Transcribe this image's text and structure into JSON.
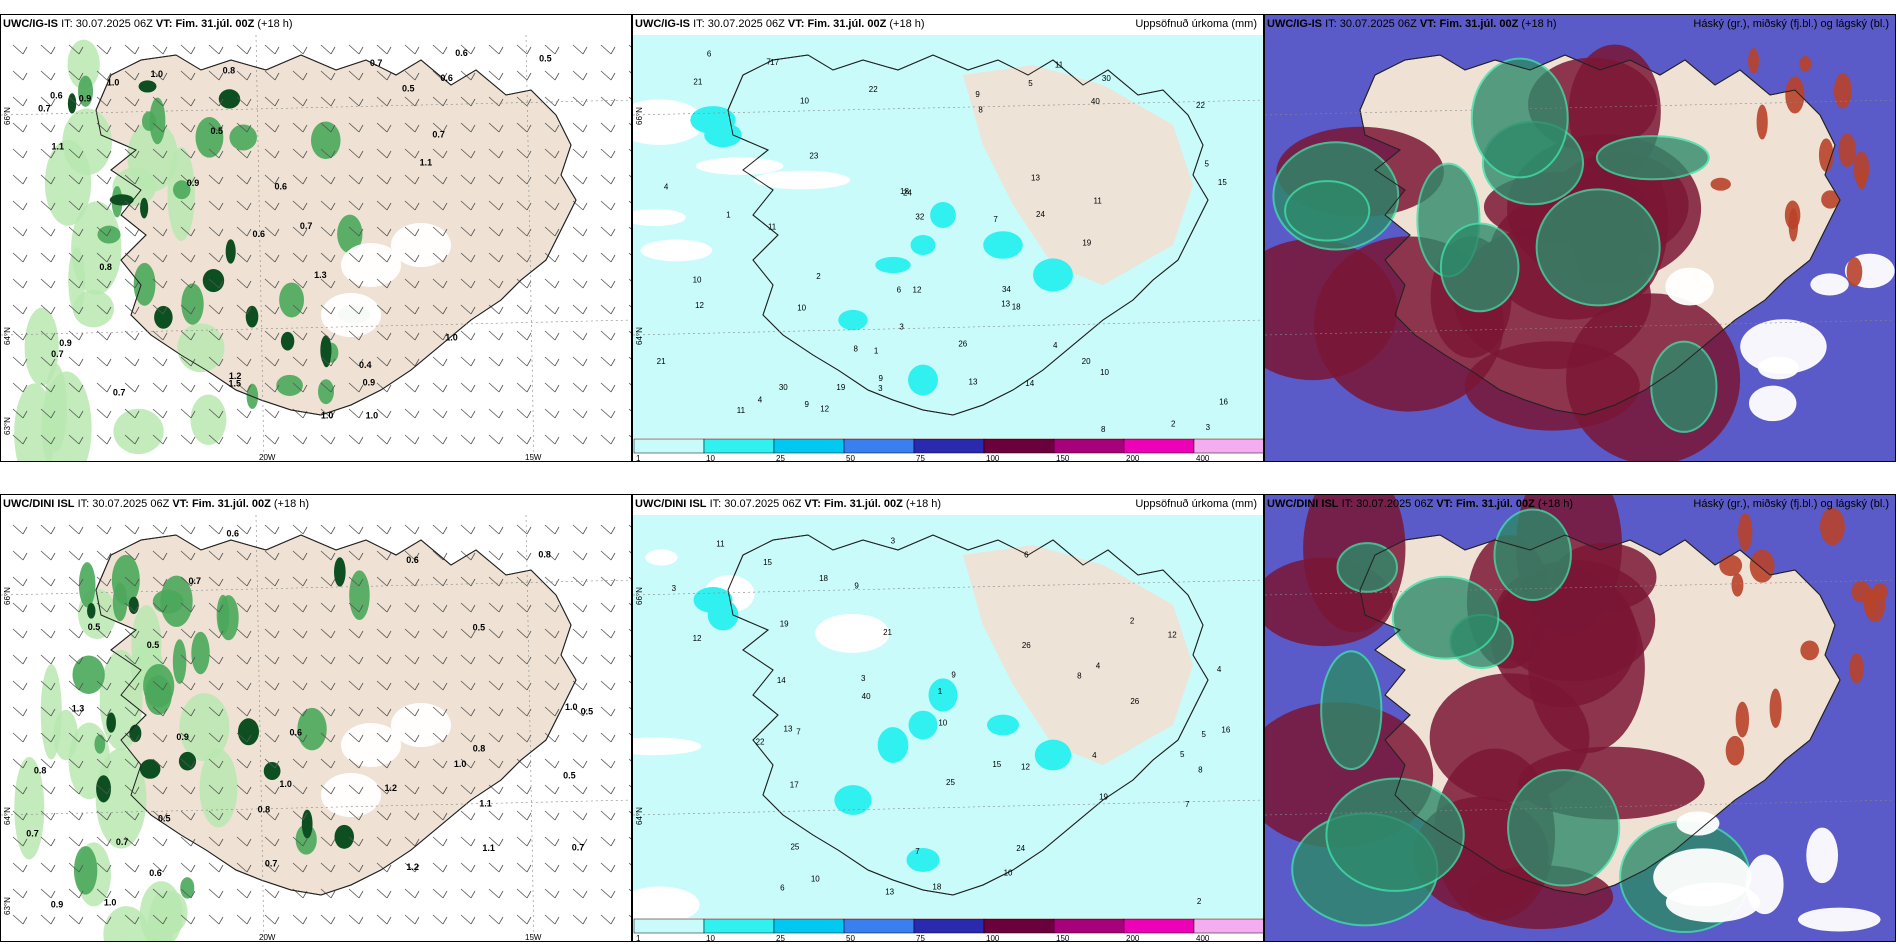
{
  "panels": [
    {
      "model": "UWC/IG-IS",
      "it_label": "IT:",
      "it_value": "30.07.2025 06Z",
      "vt_label": "VT:",
      "vt_value": "Fim. 31.júl. 00Z",
      "lead": "(+18 h)",
      "right_title": "",
      "type": "wind",
      "values": [
        "0.7",
        "0.9",
        "0.7",
        "0.6",
        "0.7",
        "1.0",
        "0.6",
        "0.7",
        "0.5",
        "0.9",
        "1.0",
        "0.8",
        "1.1",
        "1.2",
        "0.7",
        "1.1",
        "1.0",
        "0.6",
        "0.5",
        "1.0",
        "0.7",
        "0.9",
        "0.4",
        "1.0",
        "0.5",
        "0.6",
        "0.8",
        "1.3",
        "1.5",
        "0.9",
        "0.6"
      ],
      "lat_labels": [
        "66°N",
        "64°N",
        "63°N"
      ],
      "lon_labels": [
        "20W",
        "15W"
      ]
    },
    {
      "model": "UWC/IG-IS",
      "it_label": "IT:",
      "it_value": "30.07.2025 06Z",
      "vt_label": "VT:",
      "vt_value": "Fim. 31.júl. 00Z",
      "lead": "(+18 h)",
      "right_title": "Uppsöfnuð úrkoma (mm)",
      "type": "precip",
      "values": [
        "3",
        "4",
        "10",
        "22",
        "24",
        "30",
        "32",
        "34",
        "17",
        "12",
        "13",
        "10",
        "8",
        "7",
        "11",
        "9",
        "12",
        "11",
        "21",
        "19",
        "23",
        "26",
        "24",
        "16",
        "15",
        "12",
        "10",
        "40",
        "21",
        "9",
        "11",
        "13",
        "20",
        "18",
        "19",
        "14",
        "22",
        "13",
        "18",
        "30",
        "8",
        "6",
        "4",
        "5",
        "3",
        "2",
        "1",
        "1",
        "2",
        "3",
        "4",
        "5",
        "6",
        "7",
        "8",
        "9",
        "10",
        "11"
      ],
      "lat_labels": [
        "66°N",
        "64°N"
      ],
      "colorbar_labels": [
        "1",
        "10",
        "25",
        "50",
        "75",
        "100",
        "150",
        "200",
        "400"
      ],
      "colorbar_colors": [
        "#c9fbfb",
        "#31f0f0",
        "#00c8f0",
        "#3a7ff0",
        "#2a2ab0",
        "#6b003c",
        "#a8007a",
        "#ee00b6",
        "#f4aef0"
      ]
    },
    {
      "model": "UWC/IG-IS",
      "it_label": "IT:",
      "it_value": "30.07.2025 06Z",
      "vt_label": "VT:",
      "vt_value": "Fim. 31.júl. 00Z",
      "lead": "(+18 h)",
      "right_title": "Háský (gr.), miðský (fj.bl.) og lágský (bl.)",
      "type": "cloud"
    },
    {
      "model": "UWC/DINI ISL",
      "it_label": "IT:",
      "it_value": "30.07.2025 06Z",
      "vt_label": "VT:",
      "vt_value": "Fim. 31.júl. 00Z",
      "lead": "(+18 h)",
      "right_title": "",
      "type": "wind",
      "values": [
        "0.5",
        "0.9",
        "1.1",
        "1.2",
        "0.8",
        "0.5",
        "1.0",
        "0.7",
        "0.6",
        "0.5",
        "0.8",
        "1.3",
        "0.6",
        "0.5",
        "0.7",
        "1.0",
        "0.7",
        "0.5",
        "1.0",
        "0.6",
        "0.7",
        "0.5",
        "0.8",
        "0.7",
        "1.2",
        "1.1",
        "0.9",
        "1.0",
        "0.6",
        "0.8"
      ],
      "lat_labels": [
        "66°N",
        "64°N",
        "63°N"
      ],
      "lon_labels": [
        "20W",
        "15W"
      ]
    },
    {
      "model": "UWC/DINI ISL",
      "it_label": "IT:",
      "it_value": "30.07.2025 06Z",
      "vt_label": "VT:",
      "vt_value": "Fim. 31.júl. 00Z",
      "lead": "(+18 h)",
      "right_title": "Uppsöfnuð úrkoma (mm)",
      "type": "precip",
      "values": [
        "3",
        "4",
        "7",
        "10",
        "13",
        "22",
        "25",
        "17",
        "19",
        "13",
        "9",
        "15",
        "18",
        "12",
        "8",
        "10",
        "14",
        "15",
        "40",
        "24",
        "26",
        "19",
        "18",
        "12",
        "21",
        "11",
        "9",
        "25",
        "26",
        "10",
        "12",
        "16",
        "7",
        "6",
        "5",
        "4",
        "3",
        "2",
        "1",
        "2",
        "3",
        "4",
        "5",
        "6",
        "7",
        "8"
      ],
      "lat_labels": [
        "66°N",
        "64°N"
      ],
      "colorbar_labels": [
        "1",
        "10",
        "25",
        "50",
        "75",
        "100",
        "150",
        "200",
        "400"
      ],
      "colorbar_colors": [
        "#c9fbfb",
        "#31f0f0",
        "#00c8f0",
        "#3a7ff0",
        "#2a2ab0",
        "#6b003c",
        "#a8007a",
        "#ee00b6",
        "#f4aef0"
      ]
    },
    {
      "model": "UWC/DINI ISL",
      "it_label": "IT:",
      "it_value": "30.07.2025 06Z",
      "vt_label": "VT:",
      "vt_value": "Fim. 31.júl. 00Z",
      "lead": "(+18 h)",
      "right_title": "Háský (gr.), miðský (fj.bl.) og lágský (bl.)",
      "type": "cloud"
    }
  ],
  "colors": {
    "land": "#efe2d4",
    "wind_green_light": "#b8e8b0",
    "wind_green": "#4aa85a",
    "wind_green_dark": "#0e4f22",
    "precip_light": "#c9fbfb",
    "precip_mid": "#31f0f0",
    "cloud_high": "#7a1635",
    "cloud_mid": "#2e8a6a",
    "cloud_low": "#5a5ac8"
  }
}
